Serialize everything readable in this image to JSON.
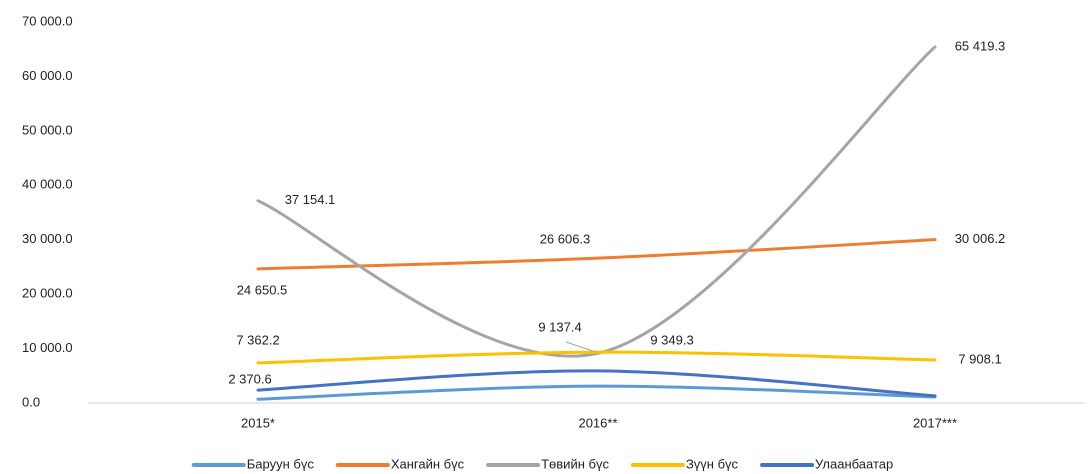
{
  "chart_data": {
    "type": "line",
    "categories": [
      "2015*",
      "2016**",
      "2017***"
    ],
    "ylim": [
      0,
      70000
    ],
    "yticks": [
      {
        "value": 0,
        "label": "0.0"
      },
      {
        "value": 10000,
        "label": "10 000.0"
      },
      {
        "value": 20000,
        "label": "20 000.0"
      },
      {
        "value": 30000,
        "label": "30 000.0"
      },
      {
        "value": 40000,
        "label": "40 000.0"
      },
      {
        "value": 50000,
        "label": "50 000.0"
      },
      {
        "value": 60000,
        "label": "60 000.0"
      },
      {
        "value": 70000,
        "label": "70 000.0"
      }
    ],
    "grid": false,
    "legend": "bottom",
    "series": [
      {
        "name": "Баруун бүс",
        "color": "#5b9bd5",
        "values": [
          700,
          3100,
          1100
        ]
      },
      {
        "name": "Хангайн бүс",
        "color": "#ed7d31",
        "values": [
          24650.5,
          26606.3,
          30006.2
        ],
        "value_labels": [
          "24 650.5",
          "26 606.3",
          "30 006.2"
        ]
      },
      {
        "name": "Төвийн бүс",
        "color": "#a5a5a5",
        "values": [
          37154.1,
          9137.4,
          65419.3
        ],
        "value_labels": [
          "37 154.1",
          "9 137.4",
          "65 419.3"
        ]
      },
      {
        "name": "Зүүн бүс",
        "color": "#ffc000",
        "values": [
          7362.2,
          9349.3,
          7908.1
        ],
        "value_labels": [
          "7 362.2",
          "9 349.3",
          "7 908.1"
        ]
      },
      {
        "name": "Улаанбаатар",
        "color": "#4472c4",
        "values": [
          2370.6,
          5900,
          1300
        ],
        "value_labels": [
          "2 370.6",
          null,
          null
        ]
      }
    ]
  }
}
